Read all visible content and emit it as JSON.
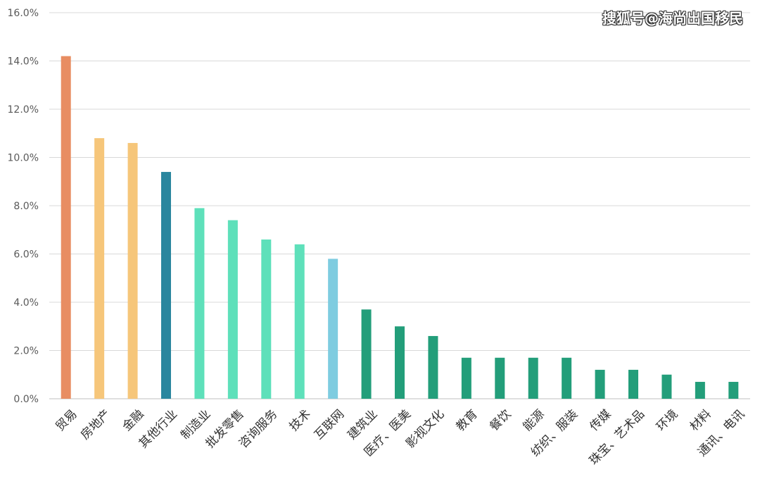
{
  "watermark": "搜狐号@海尚出国移民",
  "chart_data": {
    "type": "bar",
    "title": "",
    "xlabel": "",
    "ylabel": "",
    "ylim": [
      0,
      16
    ],
    "yticks": [
      0,
      2,
      4,
      6,
      8,
      10,
      12,
      14,
      16
    ],
    "ytick_labels": [
      "0.0%",
      "2.0%",
      "4.0%",
      "6.0%",
      "8.0%",
      "10.0%",
      "12.0%",
      "14.0%",
      "16.0%"
    ],
    "grid": true,
    "legend": "none",
    "categories": [
      "贸易",
      "房地产",
      "金融",
      "其他行业",
      "制造业",
      "批发零售",
      "咨询服务",
      "技术",
      "互联网",
      "建筑业",
      "医疗、医美",
      "影视文化",
      "教育",
      "餐饮",
      "能源",
      "纺织、服装",
      "传媒",
      "珠宝、艺术品",
      "环境",
      "材料",
      "通讯、电讯"
    ],
    "values": [
      14.2,
      10.8,
      10.6,
      9.4,
      7.9,
      7.4,
      6.6,
      6.4,
      5.8,
      3.7,
      3.0,
      2.6,
      1.7,
      1.7,
      1.7,
      1.7,
      1.2,
      1.2,
      1.0,
      0.7,
      0.7
    ],
    "colors": [
      "#E88D62",
      "#F6C67A",
      "#F6C67A",
      "#2A869E",
      "#5EE0BA",
      "#5EE0BA",
      "#5EE0BA",
      "#5EE0BA",
      "#7ECCE0",
      "#239E7A",
      "#239E7A",
      "#239E7A",
      "#239E7A",
      "#239E7A",
      "#239E7A",
      "#239E7A",
      "#239E7A",
      "#239E7A",
      "#239E7A",
      "#239E7A",
      "#239E7A"
    ],
    "gridline_color": "#D9D9D9",
    "axis_color": "#BFBFBF"
  }
}
